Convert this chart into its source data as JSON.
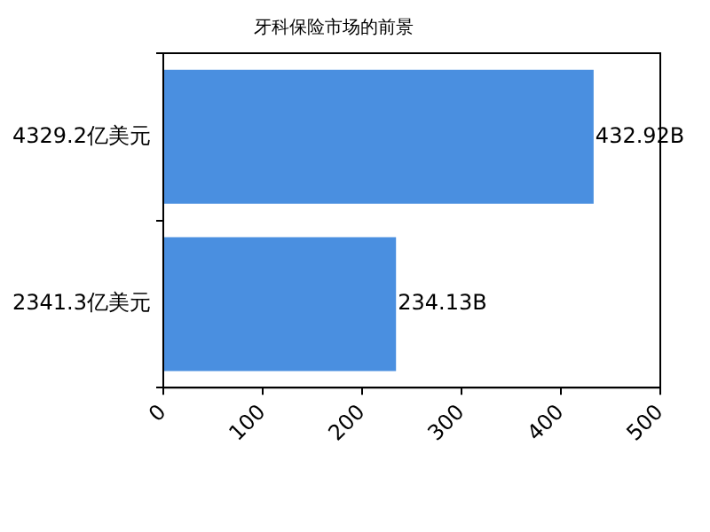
{
  "chart_data": {
    "type": "bar",
    "orientation": "horizontal",
    "title": "牙科保险市场的前景",
    "categories": [
      "4329.2亿美元",
      "2341.3亿美元"
    ],
    "values": [
      432.92,
      234.13
    ],
    "value_labels": [
      "432.92B",
      "234.13B"
    ],
    "color": "#4a8fe0",
    "xlim": [
      0,
      500
    ],
    "xticks": [
      0,
      100,
      200,
      300,
      400,
      500
    ],
    "grid": false,
    "legend": false
  }
}
